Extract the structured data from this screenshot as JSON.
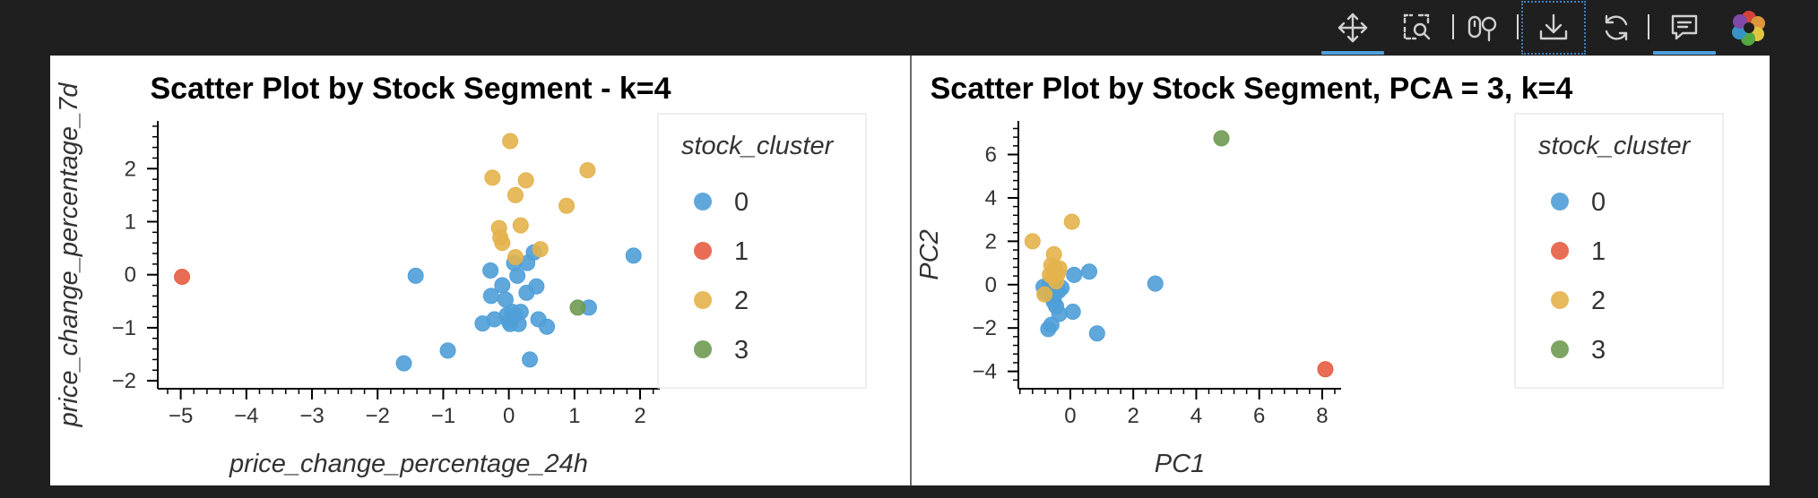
{
  "toolbar": {
    "tools": [
      {
        "name": "pan-tool",
        "icon": "move-arrows-icon",
        "active": true
      },
      {
        "name": "box-zoom-tool",
        "icon": "box-zoom-icon",
        "active": false
      },
      {
        "name": "wheel-zoom-tool",
        "icon": "wheel-zoom-icon",
        "active": false
      },
      {
        "name": "save-tool",
        "icon": "download-icon",
        "active": false,
        "focused": true
      },
      {
        "name": "reset-tool",
        "icon": "refresh-icon",
        "active": false
      },
      {
        "name": "hover-tool",
        "icon": "hover-comment-icon",
        "active": true
      },
      {
        "name": "bokeh-logo",
        "icon": "bokeh-logo-icon",
        "active": false
      }
    ],
    "active_color": "#4f9fdc"
  },
  "chart_data": [
    {
      "type": "scatter",
      "title": "Scatter Plot by Stock Segment - k=4",
      "xlabel": "price_change_percentage_24h",
      "ylabel": "price_change_percentage_7d",
      "xlim": [
        -5.35,
        2.3
      ],
      "ylim": [
        -2.15,
        2.9
      ],
      "xticks": [
        -5,
        -4,
        -3,
        -2,
        -1,
        0,
        1,
        2
      ],
      "yticks": [
        -2,
        -1,
        0,
        1,
        2
      ],
      "grid": false,
      "legend": {
        "title": "stock_cluster",
        "position": "right"
      },
      "series": [
        {
          "name": "0",
          "color": "#4f9fd8",
          "points": [
            [
              -1.6,
              -1.67
            ],
            [
              -1.42,
              -0.02
            ],
            [
              -0.93,
              -1.43
            ],
            [
              -0.4,
              -0.92
            ],
            [
              -0.28,
              0.08
            ],
            [
              -0.27,
              -0.4
            ],
            [
              -0.22,
              -0.84
            ],
            [
              -0.1,
              -0.2
            ],
            [
              -0.05,
              -0.47
            ],
            [
              -0.03,
              -0.76
            ],
            [
              0.0,
              -0.88
            ],
            [
              0.02,
              -0.93
            ],
            [
              0.05,
              -0.7
            ],
            [
              0.08,
              0.22
            ],
            [
              0.1,
              -0.76
            ],
            [
              0.13,
              -0.02
            ],
            [
              0.15,
              -0.93
            ],
            [
              0.18,
              -0.7
            ],
            [
              0.27,
              -0.34
            ],
            [
              0.28,
              0.22
            ],
            [
              0.32,
              -1.6
            ],
            [
              0.38,
              0.42
            ],
            [
              0.42,
              -0.22
            ],
            [
              0.45,
              -0.84
            ],
            [
              0.58,
              -0.98
            ],
            [
              1.22,
              -0.62
            ],
            [
              1.9,
              0.36
            ]
          ]
        },
        {
          "name": "1",
          "color": "#e55d41",
          "points": [
            [
              -4.98,
              -0.04
            ]
          ]
        },
        {
          "name": "2",
          "color": "#e3b24b",
          "points": [
            [
              -0.25,
              1.83
            ],
            [
              -0.15,
              0.88
            ],
            [
              -0.13,
              0.7
            ],
            [
              -0.1,
              0.6
            ],
            [
              0.02,
              2.52
            ],
            [
              0.1,
              1.5
            ],
            [
              0.1,
              0.33
            ],
            [
              0.18,
              0.93
            ],
            [
              0.26,
              1.78
            ],
            [
              0.48,
              0.48
            ],
            [
              0.88,
              1.3
            ],
            [
              1.2,
              1.97
            ]
          ]
        },
        {
          "name": "3",
          "color": "#6f9a52",
          "points": [
            [
              1.05,
              -0.62
            ]
          ]
        }
      ]
    },
    {
      "type": "scatter",
      "title": "Scatter Plot by Stock Segment, PCA = 3, k=4",
      "xlabel": "PC1",
      "ylabel": "PC2",
      "xlim": [
        -1.65,
        8.6
      ],
      "ylim": [
        -4.8,
        7.55
      ],
      "xticks": [
        0,
        2,
        4,
        6,
        8
      ],
      "yticks": [
        -4,
        -2,
        0,
        2,
        4,
        6
      ],
      "grid": false,
      "legend": {
        "title": "stock_cluster",
        "position": "right"
      },
      "series": [
        {
          "name": "0",
          "color": "#4f9fd8",
          "points": [
            [
              -0.85,
              -0.1
            ],
            [
              -0.78,
              -0.35
            ],
            [
              -0.7,
              -2.05
            ],
            [
              -0.65,
              0.05
            ],
            [
              -0.63,
              -0.3
            ],
            [
              -0.6,
              -1.85
            ],
            [
              -0.58,
              -0.6
            ],
            [
              -0.55,
              -0.2
            ],
            [
              -0.52,
              -0.8
            ],
            [
              -0.5,
              -0.45
            ],
            [
              -0.45,
              -1.0
            ],
            [
              -0.42,
              -0.1
            ],
            [
              -0.38,
              -0.3
            ],
            [
              -0.35,
              -1.35
            ],
            [
              -0.28,
              -0.15
            ],
            [
              0.08,
              -1.25
            ],
            [
              0.12,
              0.45
            ],
            [
              0.6,
              0.6
            ],
            [
              0.85,
              -2.25
            ],
            [
              2.7,
              0.05
            ]
          ]
        },
        {
          "name": "1",
          "color": "#e55d41",
          "points": [
            [
              8.1,
              -3.9
            ]
          ]
        },
        {
          "name": "2",
          "color": "#e3b24b",
          "points": [
            [
              -1.2,
              2.0
            ],
            [
              -0.82,
              -0.45
            ],
            [
              -0.65,
              0.45
            ],
            [
              -0.6,
              0.9
            ],
            [
              -0.55,
              0.35
            ],
            [
              -0.52,
              1.4
            ],
            [
              -0.48,
              0.75
            ],
            [
              -0.45,
              0.15
            ],
            [
              -0.4,
              0.5
            ],
            [
              -0.35,
              0.75
            ],
            [
              0.05,
              2.9
            ]
          ]
        },
        {
          "name": "3",
          "color": "#6f9a52",
          "points": [
            [
              4.8,
              6.75
            ]
          ]
        }
      ]
    }
  ]
}
